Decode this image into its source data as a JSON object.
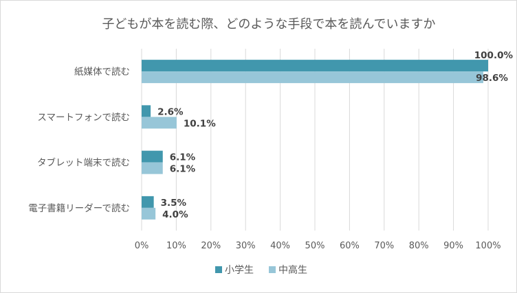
{
  "chart_data": {
    "type": "bar",
    "orientation": "horizontal",
    "title": "子どもが本を読む際、どのような手段で本を読んでいますか",
    "categories": [
      "紙媒体で読む",
      "スマートフォンで読む",
      "タブレット端末で読む",
      "電子書籍リーダーで読む"
    ],
    "series": [
      {
        "name": "小学生",
        "values": [
          100.0,
          2.6,
          6.1,
          3.5
        ],
        "color": "#4197ad"
      },
      {
        "name": "中高生",
        "values": [
          98.6,
          10.1,
          6.1,
          4.0
        ],
        "color": "#97c6d8"
      }
    ],
    "xlim": [
      0,
      100
    ],
    "x_ticks": [
      "0%",
      "10%",
      "20%",
      "30%",
      "40%",
      "50%",
      "60%",
      "70%",
      "80%",
      "90%",
      "100%"
    ],
    "data_labels": [
      [
        "100.0%",
        "2.6%",
        "6.1%",
        "3.5%"
      ],
      [
        "98.6%",
        "10.1%",
        "6.1%",
        "4.0%"
      ]
    ],
    "grid": "vertical",
    "legend_position": "bottom",
    "colors": {
      "grid": "#d9d9d9",
      "text": "#595959",
      "label": "#404040"
    }
  }
}
